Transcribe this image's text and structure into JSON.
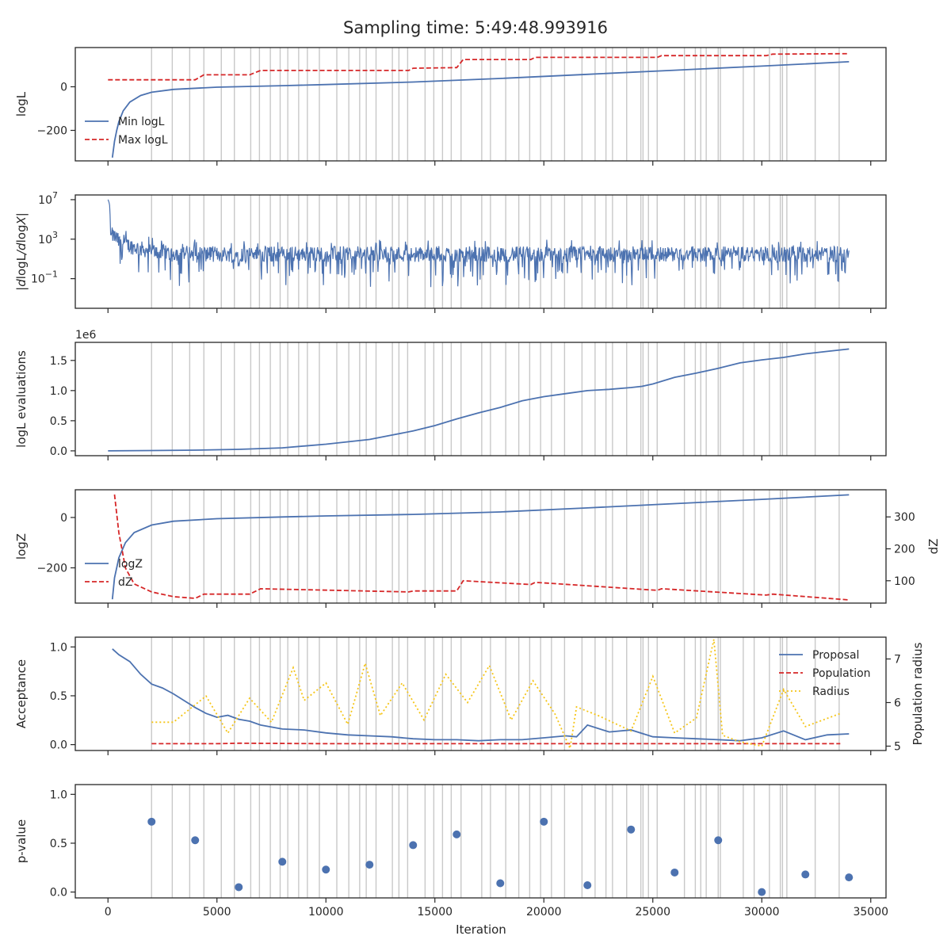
{
  "title": "Sampling time: 5:49:48.993916",
  "xlabel": "Iteration",
  "x_ticks": [
    0,
    5000,
    10000,
    15000,
    20000,
    25000,
    30000,
    35000
  ],
  "x_tick_labels": [
    "0",
    "5000",
    "10000",
    "15000",
    "20000",
    "25000",
    "30000",
    "35000"
  ],
  "colors": {
    "blue": "#4c72b0",
    "red": "#d62728",
    "gold": "#f5c518",
    "vline": "#c8c8c8"
  },
  "chart_data": [
    {
      "type": "line",
      "ylabel": "logL",
      "xlim": [
        -1500,
        35700
      ],
      "ylim": [
        -340,
        180
      ],
      "yticks": [
        0,
        -200
      ],
      "ytick_labels": [
        "0",
        "−200"
      ],
      "legend": "lower-left",
      "series": [
        {
          "name": "Min logL",
          "style": "solid",
          "color": "#4c72b0",
          "x": [
            200,
            300,
            400,
            500,
            700,
            1000,
            1500,
            2000,
            3000,
            5000,
            8000,
            10000,
            14000,
            18000,
            22000,
            26000,
            30000,
            34000
          ],
          "y": [
            -325,
            -250,
            -200,
            -160,
            -110,
            -70,
            -40,
            -25,
            -12,
            -2,
            5,
            10,
            22,
            38,
            57,
            76,
            95,
            115
          ]
        },
        {
          "name": "Max logL",
          "style": "dashed",
          "color": "#d62728",
          "x": [
            0,
            4000,
            4400,
            6500,
            7000,
            13800,
            14000,
            16000,
            16300,
            19400,
            19600,
            25200,
            25400,
            30200,
            30500,
            34000
          ],
          "y": [
            32,
            32,
            55,
            55,
            75,
            75,
            85,
            88,
            125,
            125,
            135,
            135,
            143,
            143,
            150,
            152
          ]
        }
      ]
    },
    {
      "type": "line",
      "ylabel": "|dlogL/dlogX|",
      "yscale": "log",
      "xlim": [
        -1500,
        35700
      ],
      "ylim": [
        0.0001,
        30000000
      ],
      "yticks": [
        10000000,
        1000,
        0.1
      ],
      "ytick_labels": [
        "10^7",
        "10^3",
        "10^-1"
      ],
      "series": [
        {
          "name": "",
          "style": "solid",
          "color": "#4c72b0",
          "noisy": true,
          "x": [
            0,
            100,
            500,
            1000,
            1500,
            2000,
            3000,
            5000,
            8000,
            12000,
            18000,
            25000,
            30000,
            34000
          ],
          "y": [
            10000000,
            3000,
            500,
            200,
            100,
            60,
            40,
            30,
            30,
            30,
            30,
            30,
            30,
            30
          ]
        }
      ]
    },
    {
      "type": "line",
      "ylabel": "logL evaluations",
      "offset_text": "1e6",
      "xlim": [
        -1500,
        35700
      ],
      "ylim": [
        -0.08,
        1.8
      ],
      "yticks": [
        0.0,
        0.5,
        1.0,
        1.5
      ],
      "ytick_labels": [
        "0.0",
        "0.5",
        "1.0",
        "1.5"
      ],
      "series": [
        {
          "name": "",
          "style": "solid",
          "color": "#4c72b0",
          "x": [
            0,
            2000,
            4000,
            6000,
            8000,
            9000,
            10000,
            11000,
            12000,
            13000,
            14000,
            15000,
            16000,
            17000,
            18000,
            19000,
            20000,
            21000,
            22000,
            23000,
            24000,
            24500,
            25000,
            26000,
            27000,
            28000,
            29000,
            30000,
            31000,
            32000,
            33000,
            34000
          ],
          "y": [
            0,
            0.005,
            0.012,
            0.025,
            0.05,
            0.08,
            0.11,
            0.15,
            0.19,
            0.26,
            0.33,
            0.42,
            0.53,
            0.63,
            0.72,
            0.83,
            0.9,
            0.95,
            1.0,
            1.02,
            1.05,
            1.07,
            1.11,
            1.22,
            1.29,
            1.37,
            1.46,
            1.51,
            1.55,
            1.61,
            1.65,
            1.69
          ]
        }
      ]
    },
    {
      "type": "line",
      "ylabel": "logZ",
      "y2label": "dZ",
      "xlim": [
        -1500,
        35700
      ],
      "ylim": [
        -340,
        110
      ],
      "yticks": [
        0,
        -200
      ],
      "ytick_labels": [
        "0",
        "−200"
      ],
      "y2lim": [
        30,
        385
      ],
      "y2ticks": [
        300,
        200,
        100
      ],
      "y2tick_labels": [
        "300",
        "200",
        "100"
      ],
      "legend": "lower-left",
      "series": [
        {
          "name": "logZ",
          "style": "solid",
          "color": "#4c72b0",
          "axis": "left",
          "x": [
            200,
            300,
            500,
            800,
            1200,
            2000,
            3000,
            5000,
            8000,
            10000,
            14000,
            18000,
            22000,
            26000,
            30000,
            34000
          ],
          "y": [
            -325,
            -240,
            -160,
            -100,
            -60,
            -30,
            -15,
            -5,
            2,
            6,
            12,
            22,
            38,
            55,
            72,
            90
          ]
        },
        {
          "name": "dZ",
          "style": "dashed",
          "color": "#d62728",
          "axis": "right",
          "x": [
            300,
            500,
            800,
            1200,
            2000,
            3000,
            4000,
            4400,
            6500,
            7000,
            13800,
            14000,
            16000,
            16300,
            19400,
            19600,
            25200,
            25400,
            30200,
            30500,
            34000
          ],
          "y": [
            370,
            250,
            140,
            90,
            65,
            50,
            45,
            58,
            58,
            75,
            65,
            68,
            68,
            100,
            88,
            95,
            70,
            75,
            55,
            58,
            40
          ]
        }
      ]
    },
    {
      "type": "line",
      "ylabel": "Acceptance",
      "y2label": "Population radius",
      "xlim": [
        -1500,
        35700
      ],
      "ylim": [
        -0.06,
        1.1
      ],
      "yticks": [
        0.0,
        0.5,
        1.0
      ],
      "ytick_labels": [
        "0.0",
        "0.5",
        "1.0"
      ],
      "y2lim": [
        4.9,
        7.5
      ],
      "y2ticks": [
        5,
        6,
        7
      ],
      "y2tick_labels": [
        "5",
        "6",
        "7"
      ],
      "legend": "upper-right",
      "series": [
        {
          "name": "Proposal",
          "style": "solid",
          "color": "#4c72b0",
          "axis": "left",
          "x": [
            200,
            500,
            1000,
            1500,
            2000,
            2500,
            3000,
            3500,
            4000,
            4500,
            5000,
            5500,
            6000,
            6500,
            7000,
            8000,
            9000,
            10000,
            11000,
            12000,
            13000,
            14000,
            15000,
            16000,
            17000,
            18000,
            19000,
            20000,
            21000,
            21500,
            22000,
            23000,
            24000,
            25000,
            26000,
            27000,
            28000,
            29000,
            30000,
            31000,
            32000,
            33000,
            34000
          ],
          "y": [
            0.98,
            0.92,
            0.85,
            0.72,
            0.62,
            0.58,
            0.52,
            0.45,
            0.38,
            0.32,
            0.28,
            0.3,
            0.26,
            0.24,
            0.2,
            0.16,
            0.15,
            0.12,
            0.1,
            0.09,
            0.08,
            0.06,
            0.05,
            0.05,
            0.04,
            0.05,
            0.05,
            0.07,
            0.09,
            0.08,
            0.2,
            0.13,
            0.15,
            0.08,
            0.07,
            0.06,
            0.05,
            0.04,
            0.07,
            0.14,
            0.05,
            0.1,
            0.11
          ]
        },
        {
          "name": "Population",
          "style": "dashed",
          "color": "#d62728",
          "axis": "left",
          "x": [
            2000,
            5000,
            6000,
            10000,
            20000,
            33600
          ],
          "y": [
            0.01,
            0.01,
            0.015,
            0.01,
            0.01,
            0.01
          ]
        },
        {
          "name": "Radius",
          "style": "dotted",
          "color": "#f5c518",
          "axis": "right",
          "x": [
            2000,
            3000,
            4500,
            5500,
            6500,
            7500,
            8500,
            9000,
            10000,
            11000,
            11800,
            12500,
            13500,
            14500,
            15500,
            16500,
            17500,
            18500,
            19500,
            20500,
            21200,
            21500,
            22500,
            24000,
            25000,
            26000,
            27000,
            27800,
            28200,
            29000,
            30000,
            31000,
            32000,
            33600
          ],
          "y": [
            5.55,
            5.55,
            6.15,
            5.3,
            6.1,
            5.55,
            6.8,
            6.05,
            6.45,
            5.5,
            6.9,
            5.7,
            6.45,
            5.6,
            6.65,
            6.0,
            6.85,
            5.6,
            6.5,
            5.75,
            4.95,
            5.9,
            5.7,
            5.35,
            6.6,
            5.3,
            5.65,
            7.45,
            5.25,
            5.1,
            5.0,
            6.3,
            5.45,
            5.75
          ]
        }
      ]
    },
    {
      "type": "scatter",
      "ylabel": "p-value",
      "xlim": [
        -1500,
        35700
      ],
      "ylim": [
        -0.06,
        1.1
      ],
      "yticks": [
        0.0,
        0.5,
        1.0
      ],
      "ytick_labels": [
        "0.0",
        "0.5",
        "1.0"
      ],
      "series": [
        {
          "name": "",
          "color": "#4c72b0",
          "x": [
            2000,
            4000,
            6000,
            8000,
            10000,
            12000,
            14000,
            16000,
            18000,
            20000,
            22000,
            24000,
            26000,
            28000,
            30000,
            32000,
            34000
          ],
          "y": [
            0.72,
            0.53,
            0.05,
            0.31,
            0.23,
            0.28,
            0.48,
            0.59,
            0.09,
            0.72,
            0.07,
            0.64,
            0.2,
            0.53,
            0.0,
            0.18,
            0.15
          ]
        }
      ]
    }
  ],
  "vlines_x": [
    2000,
    2950,
    3750,
    4400,
    5200,
    5800,
    6550,
    6950,
    7450,
    7900,
    8250,
    8750,
    9150,
    9700,
    10500,
    11050,
    11550,
    11850,
    12300,
    13050,
    13350,
    13750,
    14550,
    14950,
    15350,
    15750,
    16200,
    17150,
    17550,
    18250,
    18850,
    19350,
    19850,
    20350,
    20950,
    21750,
    22350,
    22850,
    23150,
    23800,
    24450,
    24550,
    24800,
    25200,
    26450,
    26950,
    27200,
    27450,
    28000,
    28100,
    29150,
    29650,
    30350,
    30850,
    30950,
    31150,
    32450,
    33550
  ]
}
